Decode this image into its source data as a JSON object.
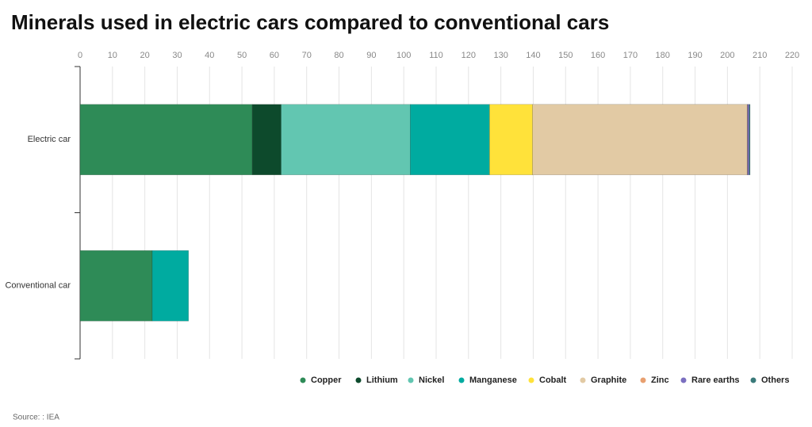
{
  "chart_data": {
    "type": "stacked-bar-horizontal",
    "title": "Minerals used in electric cars compared to conventional cars",
    "source": "Source: : IEA",
    "categories": [
      "Electric car",
      "Conventional car"
    ],
    "series": [
      {
        "name": "Copper",
        "color": "#2e8b57",
        "values": [
          53.2,
          22.3
        ]
      },
      {
        "name": "Lithium",
        "color": "#0d4a2c",
        "values": [
          8.9,
          null
        ]
      },
      {
        "name": "Nickel",
        "color": "#62c6b1",
        "values": [
          39.9,
          null
        ]
      },
      {
        "name": "Manganese",
        "color": "#00aba0",
        "values": [
          24.5,
          11.2
        ]
      },
      {
        "name": "Cobalt",
        "color": "#ffe23a",
        "values": [
          13.3,
          null
        ]
      },
      {
        "name": "Graphite",
        "color": "#e2caa4",
        "values": [
          66.3,
          null
        ]
      },
      {
        "name": "Zinc",
        "color": "#e8a070",
        "values": [
          0.1,
          null
        ]
      },
      {
        "name": "Rare earths",
        "color": "#7b6fc0",
        "values": [
          0.5,
          null
        ]
      },
      {
        "name": "Others",
        "color": "#3a7a7a",
        "values": [
          0.3,
          null
        ]
      }
    ],
    "xlim": [
      0,
      220
    ],
    "xticks": [
      0,
      10,
      20,
      30,
      40,
      50,
      60,
      70,
      80,
      90,
      100,
      110,
      120,
      130,
      140,
      150,
      160,
      170,
      180,
      190,
      200,
      210,
      220
    ],
    "grid": true
  }
}
